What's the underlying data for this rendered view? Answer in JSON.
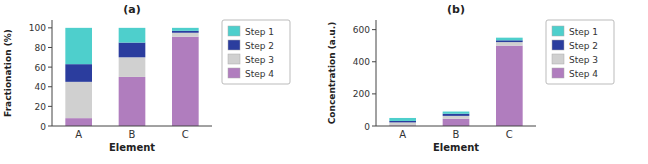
{
  "chart_data": [
    {
      "type": "bar",
      "title": "(a)",
      "x_label": "Element",
      "y_label": "Fractionation (%)",
      "categories": [
        "A",
        "B",
        "C"
      ],
      "series": [
        {
          "name": "Step 1",
          "color": "#4ecfcc",
          "values": [
            37,
            15,
            3
          ]
        },
        {
          "name": "Step 2",
          "color": "#2b3d9e",
          "values": [
            18,
            15,
            2
          ]
        },
        {
          "name": "Step 3",
          "color": "#d0d0d0",
          "values": [
            37,
            20,
            4
          ]
        },
        {
          "name": "Step 4",
          "color": "#b07dbe",
          "values": [
            8,
            50,
            91
          ]
        }
      ],
      "ylim": [
        0,
        108
      ],
      "yticks": [
        0,
        20,
        40,
        60,
        80,
        100
      ],
      "stacked": true,
      "grid": false,
      "legend": "right"
    },
    {
      "type": "bar",
      "title": "(b)",
      "x_label": "Element",
      "y_label": "Concentration (a.u.)",
      "categories": [
        "A",
        "B",
        "C"
      ],
      "series": [
        {
          "name": "Step 1",
          "color": "#4ecfcc",
          "values": [
            18.5,
            13.5,
            16.5
          ]
        },
        {
          "name": "Step 2",
          "color": "#2b3d9e",
          "values": [
            9,
            13.5,
            11
          ]
        },
        {
          "name": "Step 3",
          "color": "#d0d0d0",
          "values": [
            18.5,
            18,
            22
          ]
        },
        {
          "name": "Step 4",
          "color": "#b07dbe",
          "values": [
            4,
            45,
            500.5
          ]
        }
      ],
      "ylim": [
        0,
        660
      ],
      "yticks": [
        0,
        200,
        400,
        600
      ],
      "stacked": true,
      "grid": false,
      "legend": "right"
    }
  ]
}
